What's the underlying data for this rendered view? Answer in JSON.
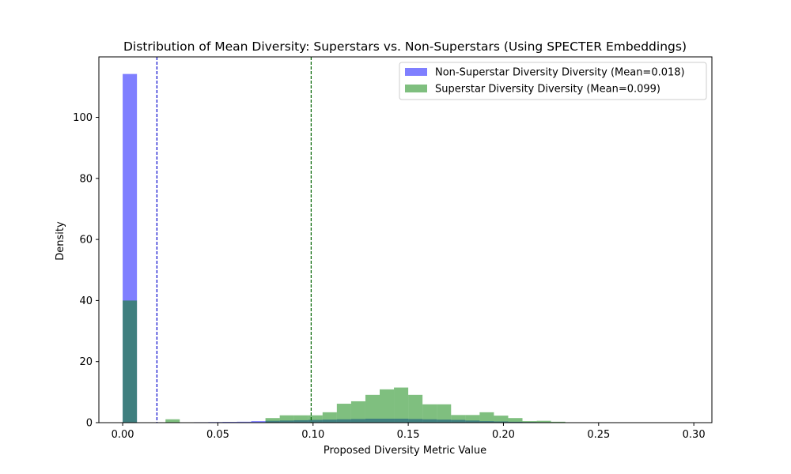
{
  "chart_data": {
    "type": "bar",
    "title": "Distribution of Mean Diversity: Superstars vs. Non-Superstars (Using SPECTER Embeddings)",
    "xlabel": "Proposed Diversity Metric Value",
    "ylabel": "Density",
    "xlim": [
      -0.0125,
      0.3095
    ],
    "ylim": [
      0,
      119.8
    ],
    "xticks": [
      0.0,
      0.05,
      0.1,
      0.15,
      0.2,
      0.25,
      0.3
    ],
    "xtick_labels": [
      "0.00",
      "0.05",
      "0.10",
      "0.15",
      "0.20",
      "0.25",
      "0.30"
    ],
    "yticks": [
      0,
      20,
      40,
      60,
      80,
      100
    ],
    "ytick_labels": [
      "0",
      "20",
      "40",
      "60",
      "80",
      "100"
    ],
    "legend_position": "upper right",
    "grid": false,
    "series": [
      {
        "name": "Non-Superstar Diversity Diversity (Mean=0.018)",
        "color": "#0000ff",
        "opacity": 0.5,
        "mean": 0.018,
        "mean_line_color": "#0000cc",
        "bins": [
          [
            0.0,
            0.0075,
            114.2
          ],
          [
            0.0375,
            0.045,
            0.15
          ],
          [
            0.045,
            0.0525,
            0.2
          ],
          [
            0.0525,
            0.06,
            0.25
          ],
          [
            0.06,
            0.0675,
            0.3
          ],
          [
            0.0675,
            0.075,
            0.5
          ],
          [
            0.075,
            0.0825,
            0.6
          ],
          [
            0.0825,
            0.09,
            0.7
          ],
          [
            0.09,
            0.0975,
            0.8
          ],
          [
            0.0975,
            0.105,
            0.9
          ],
          [
            0.105,
            0.1125,
            1.0
          ],
          [
            0.1125,
            0.12,
            1.1
          ],
          [
            0.12,
            0.1275,
            1.2
          ],
          [
            0.1275,
            0.135,
            1.3
          ],
          [
            0.135,
            0.1425,
            1.3
          ],
          [
            0.1425,
            0.15,
            1.3
          ],
          [
            0.15,
            0.1575,
            1.2
          ],
          [
            0.1575,
            0.165,
            1.1
          ],
          [
            0.165,
            0.1725,
            1.0
          ],
          [
            0.1725,
            0.18,
            0.9
          ],
          [
            0.18,
            0.1875,
            0.7
          ],
          [
            0.1875,
            0.195,
            0.5
          ],
          [
            0.195,
            0.2025,
            0.4
          ],
          [
            0.2025,
            0.21,
            0.3
          ],
          [
            0.21,
            0.2175,
            0.2
          ],
          [
            0.2175,
            0.225,
            0.15
          ],
          [
            0.225,
            0.2325,
            0.1
          ],
          [
            0.2325,
            0.24,
            0.05
          ]
        ]
      },
      {
        "name": "Superstar Diversity Diversity (Mean=0.099)",
        "color": "#008000",
        "opacity": 0.5,
        "mean": 0.099,
        "mean_line_color": "#006400",
        "bins": [
          [
            0.0,
            0.0075,
            40.0
          ],
          [
            0.0225,
            0.03,
            1.1
          ],
          [
            0.075,
            0.0825,
            1.5
          ],
          [
            0.0825,
            0.09,
            2.4
          ],
          [
            0.09,
            0.0975,
            2.4
          ],
          [
            0.0975,
            0.105,
            2.4
          ],
          [
            0.105,
            0.1125,
            3.4
          ],
          [
            0.1125,
            0.12,
            6.2
          ],
          [
            0.12,
            0.1275,
            7.0
          ],
          [
            0.1275,
            0.135,
            9.1
          ],
          [
            0.135,
            0.1425,
            10.9
          ],
          [
            0.1425,
            0.15,
            11.5
          ],
          [
            0.15,
            0.1575,
            9.1
          ],
          [
            0.1575,
            0.165,
            6.0
          ],
          [
            0.165,
            0.1725,
            6.0
          ],
          [
            0.1725,
            0.18,
            2.5
          ],
          [
            0.18,
            0.1875,
            2.5
          ],
          [
            0.1875,
            0.195,
            3.4
          ],
          [
            0.195,
            0.2025,
            2.3
          ],
          [
            0.2025,
            0.21,
            1.5
          ],
          [
            0.21,
            0.2175,
            0.5
          ],
          [
            0.2175,
            0.225,
            0.6
          ],
          [
            0.225,
            0.2325,
            0.3
          ]
        ]
      }
    ]
  }
}
